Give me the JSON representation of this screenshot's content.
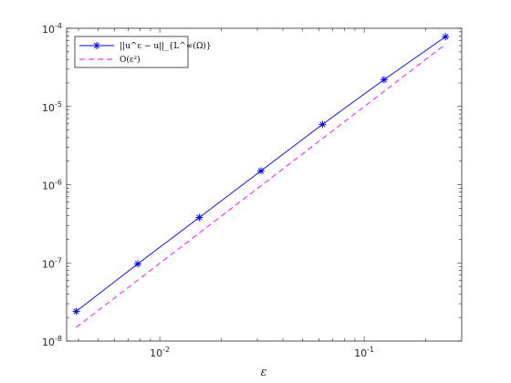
{
  "chart_data": {
    "type": "line",
    "xscale": "log",
    "yscale": "log",
    "xlim": [
      0.0035,
      0.3
    ],
    "ylim": [
      1e-08,
      0.0001
    ],
    "xlabel": "ε",
    "ylabel": "",
    "title": "",
    "grid": false,
    "legend_position": "top-left",
    "x_ticks": [
      {
        "value": 0.01,
        "base": "10",
        "exp": "-2"
      },
      {
        "value": 0.1,
        "base": "10",
        "exp": "-1"
      }
    ],
    "y_ticks": [
      {
        "value": 1e-08,
        "base": "10",
        "exp": "-8"
      },
      {
        "value": 1e-07,
        "base": "10",
        "exp": "-7"
      },
      {
        "value": 1e-06,
        "base": "10",
        "exp": "-6"
      },
      {
        "value": 1e-05,
        "base": "10",
        "exp": "-5"
      },
      {
        "value": 0.0001,
        "base": "10",
        "exp": "-4"
      }
    ],
    "series": [
      {
        "name": "||u^ε − u||_{L^∞(Ω)}",
        "color": "#0000ff",
        "style": "solid",
        "marker": "asterisk",
        "x": [
          0.0039,
          0.0078,
          0.0156,
          0.03125,
          0.0625,
          0.125,
          0.25
        ],
        "y": [
          2.4e-08,
          9.7e-08,
          3.8e-07,
          1.5e-06,
          5.9e-06,
          2.2e-05,
          7.8e-05
        ]
      },
      {
        "name": "O(ε²)",
        "color": "#ff00ff",
        "style": "dashed",
        "marker": "none",
        "x": [
          0.0039,
          0.25
        ],
        "y": [
          1.5e-08,
          6.25e-05
        ]
      }
    ]
  }
}
